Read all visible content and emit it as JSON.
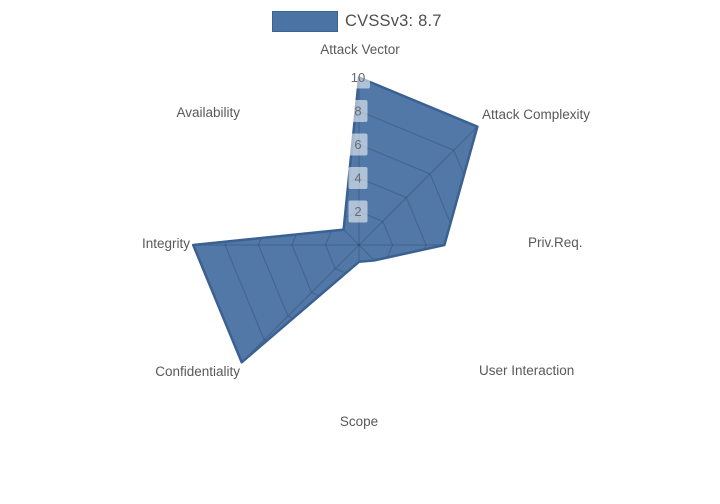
{
  "legend": {
    "label": "CVSSv3: 8.7"
  },
  "colors": {
    "fill": "#4b74a4",
    "line": "#3a6191",
    "grid_line": "rgba(0,0,0,0.15)",
    "axis_label": "#595959",
    "tick_text": "#666b70",
    "tick_box": "rgba(255,255,255,0.55)",
    "legend_text": "#4f4f4f",
    "background": "#ffffff"
  },
  "chart_data": {
    "type": "radar",
    "title": "CVSSv3: 8.7",
    "categories": [
      "Attack Vector",
      "Attack Complexity",
      "Priv.Req.",
      "User Interaction",
      "Scope",
      "Confidentiality",
      "Integrity",
      "Availability"
    ],
    "series": [
      {
        "name": "CVSSv3: 8.7",
        "values": [
          10,
          10,
          5.1,
          1.3,
          1,
          9.9,
          9.9,
          1.3
        ]
      }
    ],
    "radial_ticks": [
      2,
      4,
      6,
      8,
      10
    ],
    "radial_range": [
      0,
      10
    ],
    "grid": true,
    "legend_position": "top-center"
  }
}
